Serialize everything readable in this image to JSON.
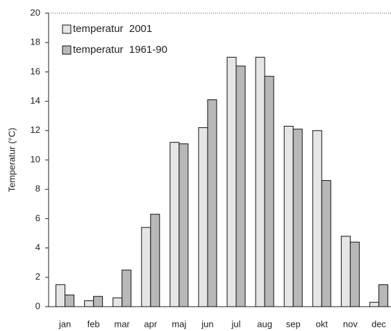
{
  "chart_data": {
    "type": "bar",
    "y_label": "Temperatur (°C)",
    "categories": [
      "jan",
      "feb",
      "mar",
      "apr",
      "maj",
      "jun",
      "jul",
      "aug",
      "sep",
      "okt",
      "nov",
      "dec"
    ],
    "series": [
      {
        "name": "temperatur  2001",
        "color": "#e6e6e6",
        "values": [
          1.5,
          0.4,
          0.6,
          5.4,
          11.2,
          12.2,
          17.0,
          17.0,
          12.3,
          12.0,
          4.8,
          0.3
        ]
      },
      {
        "name": "temperatur  1961-90",
        "color": "#b8b8b8",
        "values": [
          0.8,
          0.7,
          2.5,
          6.3,
          11.1,
          14.1,
          16.4,
          15.7,
          12.1,
          8.6,
          4.4,
          1.5
        ]
      }
    ],
    "ylim": [
      0,
      20
    ],
    "yticks": [
      0,
      2,
      4,
      6,
      8,
      10,
      12,
      14,
      16,
      18,
      20
    ],
    "legend": "upper left"
  }
}
